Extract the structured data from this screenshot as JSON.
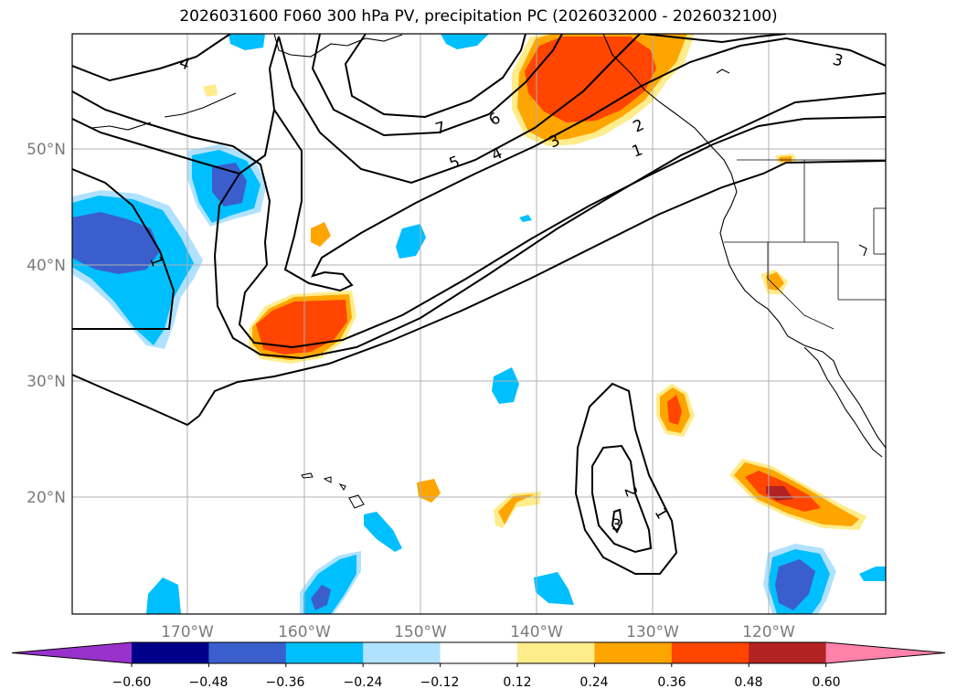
{
  "title": "2026031600 F060 300 hPa PV, precipitation PC (2026032000 - 2026032100)",
  "axes": {
    "lon_ticks": [
      "170°W",
      "160°W",
      "150°W",
      "140°W",
      "130°W",
      "120°W"
    ],
    "lat_ticks": [
      "50°N",
      "40°N",
      "30°N",
      "20°N"
    ],
    "grid": true
  },
  "colorbar": {
    "orientation": "horizontal",
    "extend": "both",
    "colors": [
      "#9932cc",
      "#00008b",
      "#3a5fcd",
      "#00bfff",
      "#b0e2ff",
      "#ffffff",
      "#ffec8b",
      "#ffa500",
      "#ff4500",
      "#b22222",
      "#ff82ab"
    ],
    "tick_labels": [
      "−0.60",
      "−0.48",
      "−0.36",
      "−0.24",
      "−0.12",
      "0.12",
      "0.24",
      "0.36",
      "0.48",
      "0.60"
    ]
  },
  "contours": {
    "variable": "300 hPa PV",
    "labels": [
      "4",
      "7",
      "6",
      "5",
      "4",
      "3",
      "2",
      "1",
      "3",
      "1",
      "2",
      "1",
      "3"
    ]
  },
  "map_data": {
    "region": "North Pacific / western North America",
    "shading_variable": "precipitation PC"
  }
}
